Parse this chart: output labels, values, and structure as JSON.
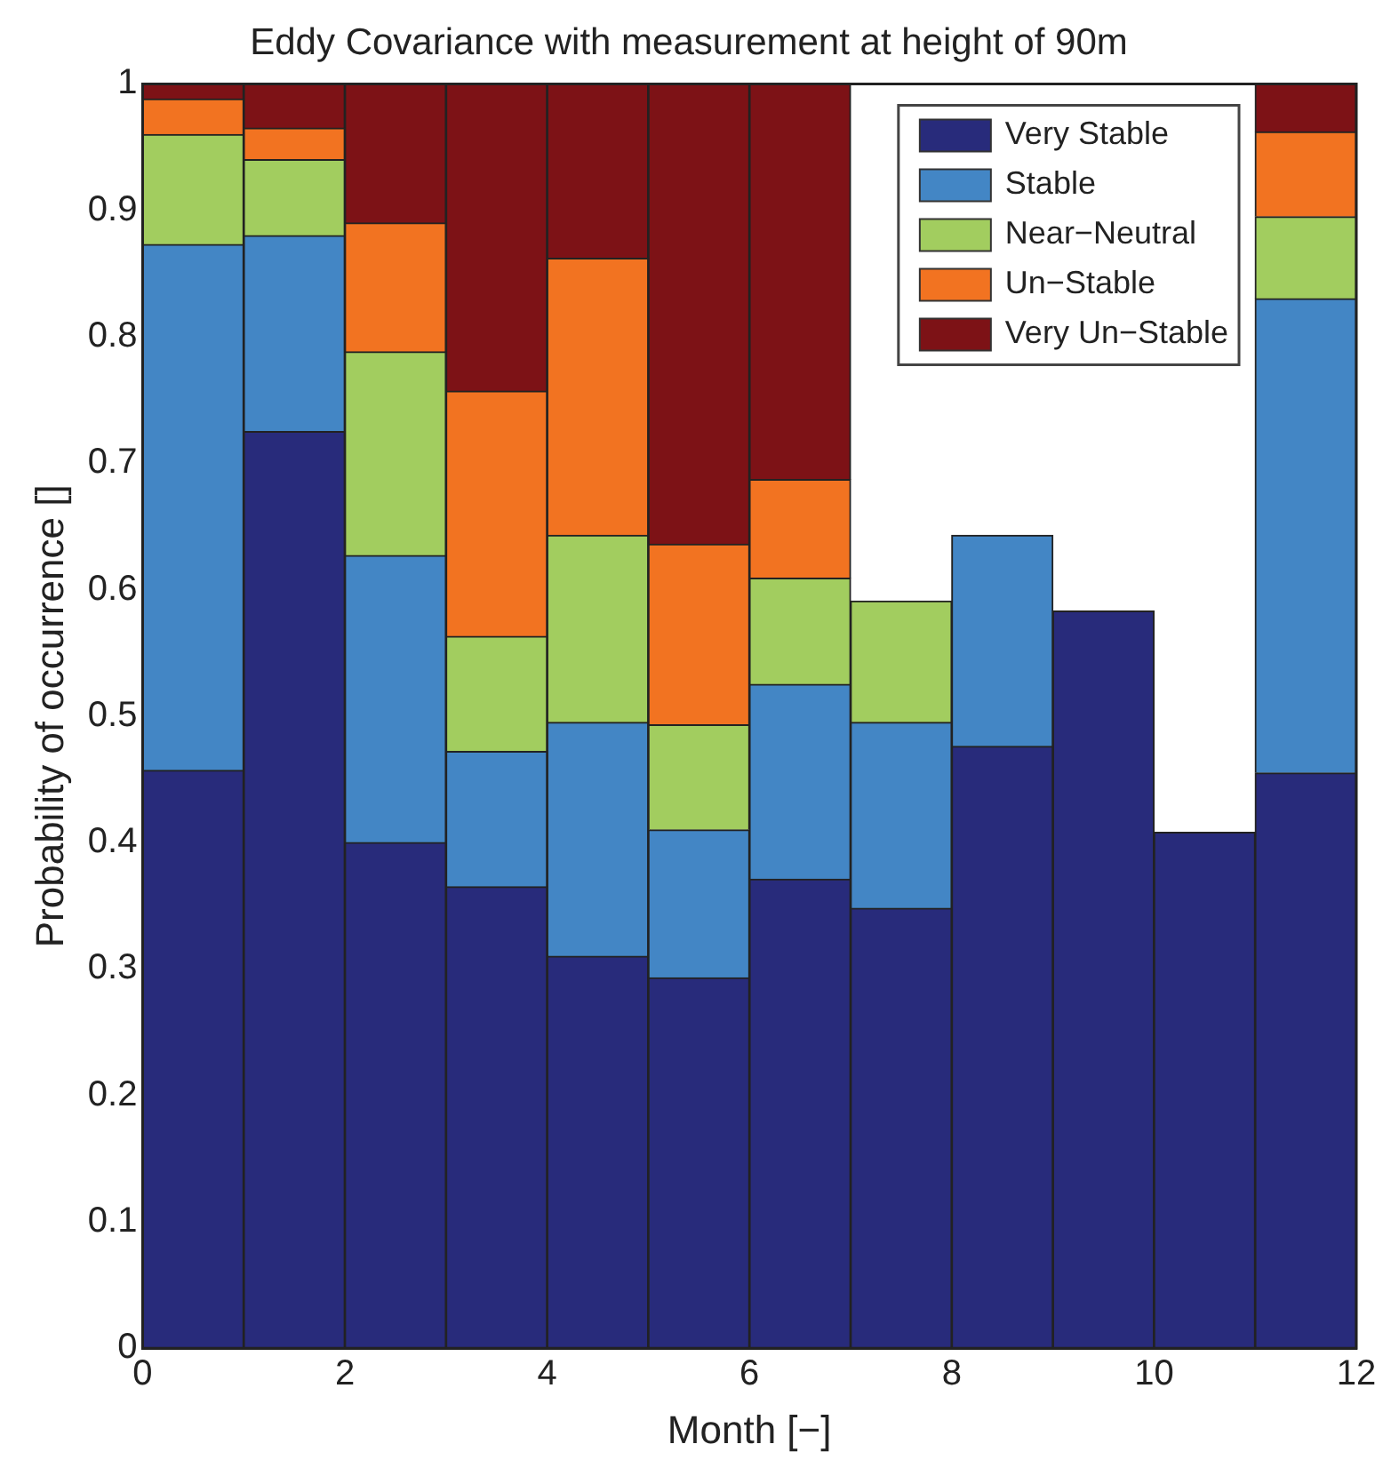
{
  "chart_data": {
    "type": "bar",
    "stacked": true,
    "title": "Eddy Covariance with measurement at height of 90m",
    "xlabel": "Month [−]",
    "ylabel": "Probability of occurrence []",
    "x": [
      0.5,
      1.5,
      2.5,
      3.5,
      4.5,
      5.5,
      6.5,
      7.5,
      8.5,
      9.5,
      10.5,
      11.5
    ],
    "series": [
      {
        "name": "Very Stable",
        "color": "#282b7b",
        "values": [
          0.457,
          0.725,
          0.4,
          0.365,
          0.31,
          0.293,
          0.371,
          0.348,
          0.476,
          0.583,
          0.408,
          0.455
        ]
      },
      {
        "name": "Stable",
        "color": "#4386c5",
        "values": [
          0.416,
          0.155,
          0.227,
          0.107,
          0.185,
          0.117,
          0.154,
          0.147,
          0.167,
          null,
          null,
          0.375
        ]
      },
      {
        "name": "Near−Neutral",
        "color": "#a2cd5f",
        "values": [
          0.087,
          0.06,
          0.161,
          0.091,
          0.148,
          0.083,
          0.084,
          0.096,
          null,
          null,
          null,
          0.065
        ]
      },
      {
        "name": "Un−Stable",
        "color": "#f27321",
        "values": [
          0.028,
          0.025,
          0.102,
          0.194,
          0.219,
          0.143,
          0.078,
          null,
          null,
          null,
          null,
          0.067
        ]
      },
      {
        "name": "Very Un−Stable",
        "color": "#7d1216",
        "values": [
          0.012,
          0.035,
          0.11,
          0.243,
          0.138,
          0.364,
          0.313,
          null,
          null,
          null,
          null,
          0.038
        ]
      }
    ],
    "xlim": [
      0,
      12
    ],
    "xticks": [
      0,
      2,
      4,
      6,
      8,
      10,
      12
    ],
    "ylim": [
      0,
      1
    ],
    "yticks": [
      0,
      0.1,
      0.2,
      0.3,
      0.4,
      0.5,
      0.6,
      0.7,
      0.8,
      0.9,
      1
    ],
    "legend": "top right"
  }
}
